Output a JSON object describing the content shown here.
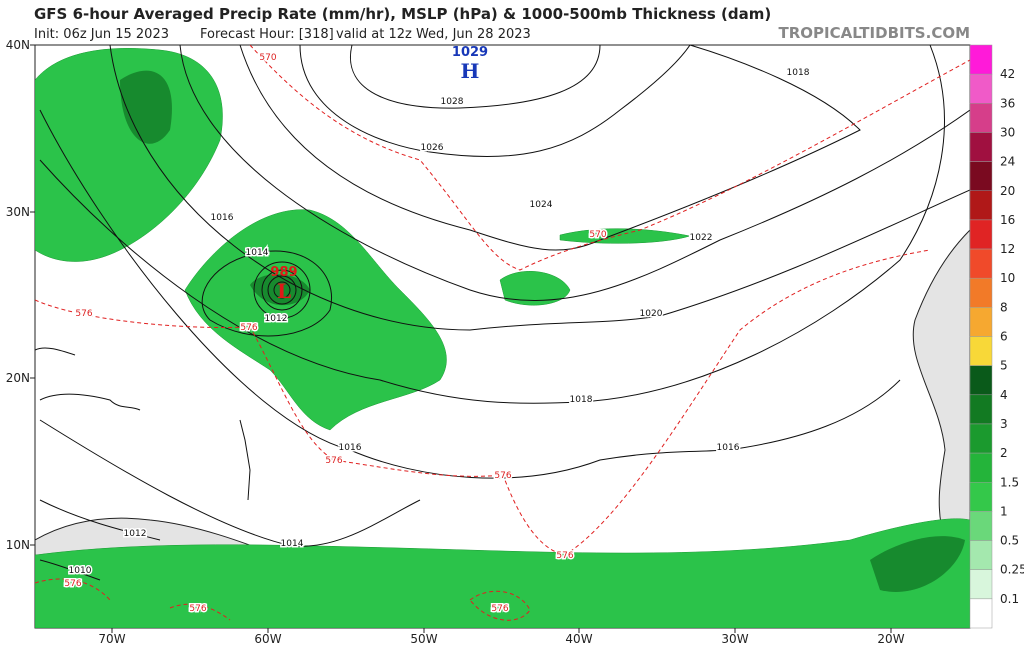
{
  "header": {
    "title": "GFS 6-hour Averaged Precip Rate (mm/hr), MSLP (hPa) & 1000-500mb Thickness (dam)",
    "init": "Init: 06z Jun 15 2023",
    "forecast_hour": "Forecast Hour: [318]",
    "valid": "valid at 12z Wed, Jun 28 2023",
    "site": "TROPICALTIDBITS.COM"
  },
  "map": {
    "lat_labels": [
      "40N",
      "30N",
      "20N",
      "10N"
    ],
    "lon_labels": [
      "70W",
      "60W",
      "50W",
      "40W",
      "30W",
      "20W"
    ],
    "isobar_labels": [
      1028,
      1026,
      1024,
      1022,
      1020,
      1018,
      1018,
      1016,
      1014,
      1012,
      1016,
      1016,
      1014,
      1012,
      1010
    ],
    "thickness_labels": [
      570,
      570,
      576,
      576,
      576,
      576,
      576,
      576,
      576,
      576
    ],
    "pressure_centers": [
      {
        "letter": "H",
        "value": 1029
      },
      {
        "letter": "L",
        "value": 989
      }
    ]
  },
  "colorbar": {
    "labels": [
      42,
      36,
      30,
      24,
      20,
      16,
      12,
      10,
      8,
      6,
      5,
      4,
      3,
      2,
      1.5,
      1,
      0.5,
      0.25,
      0.1
    ]
  }
}
